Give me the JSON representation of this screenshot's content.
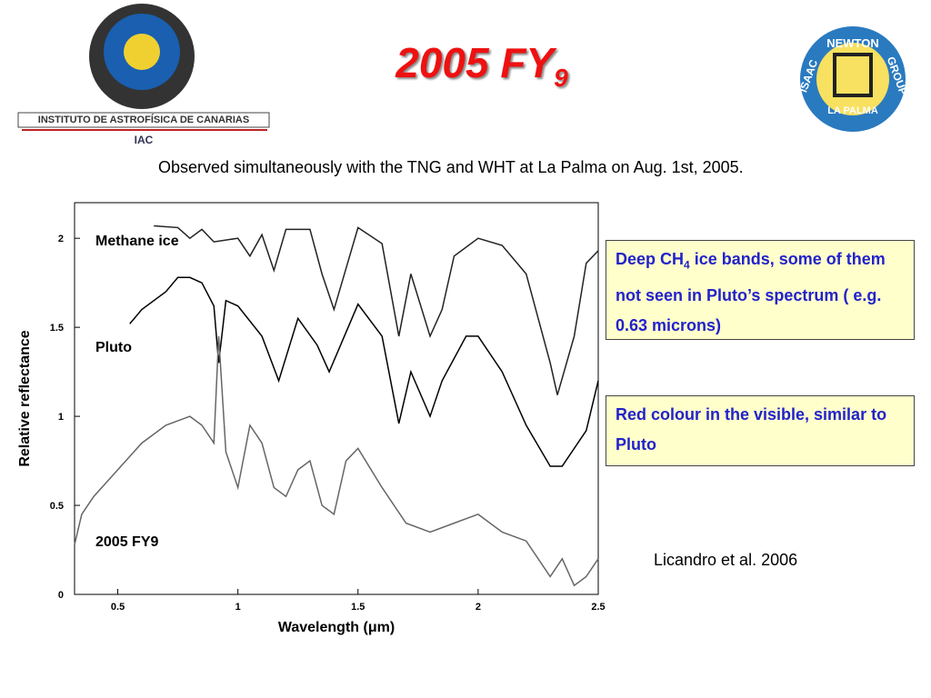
{
  "header": {
    "title": "2005 FY",
    "title_subscript": "9",
    "subtitle": "Observed simultaneously with the TNG and WHT at La Palma on Aug. 1st, 2005.",
    "left_logo": {
      "name": "INSTITUTO DE ASTROFÍSICA DE CANARIAS",
      "short": "IAC"
    },
    "right_logo": {
      "top_left": "ISAAC",
      "top": "NEWTON",
      "top_right": "GROUP",
      "bottom": "LA PALMA"
    }
  },
  "chart_data": {
    "type": "line",
    "xlabel": "Wavelength (μm)",
    "ylabel": "Relative reflectance",
    "xlim": [
      0.32,
      2.5
    ],
    "ylim": [
      0,
      2.2
    ],
    "xticks": [
      0.5,
      1,
      1.5,
      2,
      2.5
    ],
    "yticks": [
      0,
      0.5,
      1,
      1.5,
      2
    ],
    "series": [
      {
        "name": "Methane ice",
        "color": "#222222",
        "x": [
          0.65,
          0.75,
          0.8,
          0.85,
          0.9,
          1.0,
          1.05,
          1.1,
          1.15,
          1.2,
          1.3,
          1.35,
          1.4,
          1.5,
          1.6,
          1.67,
          1.72,
          1.8,
          1.85,
          1.9,
          2.0,
          2.1,
          2.2,
          2.3,
          2.33,
          2.4,
          2.45,
          2.5
        ],
        "values": [
          2.07,
          2.06,
          2.0,
          2.05,
          1.98,
          2.0,
          1.9,
          2.02,
          1.82,
          2.05,
          2.05,
          1.8,
          1.6,
          2.06,
          1.97,
          1.45,
          1.8,
          1.45,
          1.6,
          1.9,
          2.0,
          1.96,
          1.8,
          1.3,
          1.12,
          1.45,
          1.86,
          1.93
        ]
      },
      {
        "name": "Pluto",
        "color": "#000000",
        "x": [
          0.55,
          0.6,
          0.7,
          0.75,
          0.8,
          0.85,
          0.9,
          0.92,
          0.95,
          1.0,
          1.1,
          1.17,
          1.25,
          1.33,
          1.38,
          1.5,
          1.6,
          1.67,
          1.72,
          1.8,
          1.85,
          1.95,
          2.0,
          2.1,
          2.2,
          2.3,
          2.35,
          2.45,
          2.5
        ],
        "values": [
          1.52,
          1.6,
          1.7,
          1.78,
          1.78,
          1.75,
          1.62,
          1.3,
          1.65,
          1.62,
          1.45,
          1.2,
          1.55,
          1.4,
          1.25,
          1.63,
          1.45,
          0.96,
          1.25,
          1.0,
          1.2,
          1.45,
          1.45,
          1.25,
          0.95,
          0.72,
          0.72,
          0.92,
          1.2
        ]
      },
      {
        "name": "2005 FY9",
        "color": "#666666",
        "x": [
          0.32,
          0.35,
          0.4,
          0.5,
          0.6,
          0.7,
          0.8,
          0.85,
          0.9,
          0.92,
          0.95,
          1.0,
          1.05,
          1.1,
          1.15,
          1.2,
          1.25,
          1.3,
          1.35,
          1.4,
          1.45,
          1.5,
          1.6,
          1.7,
          1.8,
          1.9,
          2.0,
          2.1,
          2.2,
          2.3,
          2.35,
          2.4,
          2.45,
          2.5
        ],
        "values": [
          0.28,
          0.45,
          0.55,
          0.7,
          0.85,
          0.95,
          1.0,
          0.95,
          0.85,
          1.45,
          0.8,
          0.6,
          0.95,
          0.85,
          0.6,
          0.55,
          0.7,
          0.75,
          0.5,
          0.45,
          0.75,
          0.82,
          0.6,
          0.4,
          0.35,
          0.4,
          0.45,
          0.35,
          0.3,
          0.1,
          0.2,
          0.05,
          0.1,
          0.2
        ]
      }
    ]
  },
  "notes": [
    {
      "parts": [
        "Deep CH",
        "4",
        " ice bands, some of them not seen in Pluto’s spectrum ( e.g. 0.63 microns)"
      ]
    },
    {
      "parts": [
        "Red colour in the visible, similar to Pluto"
      ]
    }
  ],
  "citation": "Licandro et al. 2006"
}
